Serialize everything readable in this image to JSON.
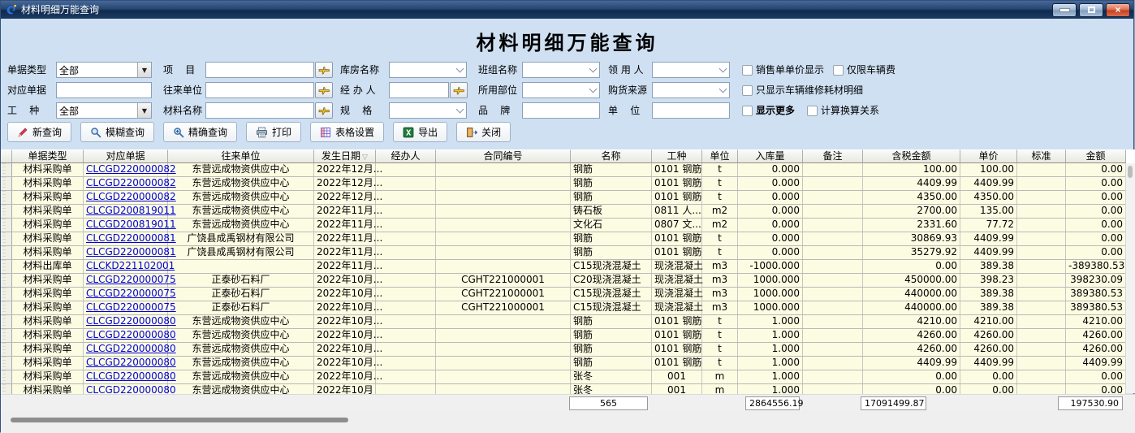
{
  "window": {
    "title": "材料明细万能查询"
  },
  "page_title": "材料明细万能查询",
  "icons": {
    "combo_arrow": "▼",
    "sort_indicator": "▽",
    "close_glyph": "×"
  },
  "filters": {
    "row1": {
      "doc_type": {
        "label": "单据类型",
        "value": "全部"
      },
      "project": {
        "label": "项    目",
        "value": ""
      },
      "warehouse": {
        "label": "库房名称",
        "value": ""
      },
      "team": {
        "label": "班组名称",
        "value": ""
      },
      "recipient": {
        "label": "领 用 人",
        "value": ""
      },
      "cb_sale_price": "销售单单价显示",
      "cb_vehicle_only": "仅限车辆费"
    },
    "row2": {
      "ref_doc": {
        "label": "对应单据",
        "value": ""
      },
      "counterparty": {
        "label": "往来单位",
        "value": ""
      },
      "handler": {
        "label": "经 办 人",
        "value": ""
      },
      "used_part": {
        "label": "所用部位",
        "value": ""
      },
      "purchase_source": {
        "label": "购货来源",
        "value": ""
      },
      "cb_vehicle_maintenance": "只显示车辆维修耗材明细"
    },
    "row3": {
      "work_type": {
        "label": "工    种",
        "value": "全部"
      },
      "material_name": {
        "label": "材料名称",
        "value": ""
      },
      "spec": {
        "label": "规    格",
        "value": ""
      },
      "brand": {
        "label": "品    牌",
        "value": ""
      },
      "unit": {
        "label": "单    位",
        "value": ""
      },
      "cb_show_more": "显示更多",
      "cb_conversion": "计算换算关系"
    }
  },
  "toolbar": {
    "new_query": "新查询",
    "fuzzy_query": "模糊查询",
    "precise_query": "精确查询",
    "print": "打印",
    "table_settings": "表格设置",
    "export": "导出",
    "close": "关闭"
  },
  "table": {
    "columns": [
      {
        "label": "",
        "width": 14,
        "align": "center",
        "stub": true
      },
      {
        "label": "单据类型",
        "width": 88,
        "align": "center"
      },
      {
        "label": "对应单据",
        "width": 104,
        "align": "center",
        "link": true
      },
      {
        "label": "往来单位",
        "width": 180,
        "align": "center"
      },
      {
        "label": "发生日期",
        "width": 76,
        "align": "left",
        "sorted": true
      },
      {
        "label": "经办人",
        "width": 74,
        "align": "left"
      },
      {
        "label": "合同编号",
        "width": 166,
        "align": "center"
      },
      {
        "label": "名称",
        "width": 100,
        "align": "left"
      },
      {
        "label": "工种",
        "width": 62,
        "align": "center"
      },
      {
        "label": "单位",
        "width": 44,
        "align": "center"
      },
      {
        "label": "入库量",
        "width": 80,
        "align": "right"
      },
      {
        "label": "备注",
        "width": 74,
        "align": "left"
      },
      {
        "label": "含税金额",
        "width": 120,
        "align": "right"
      },
      {
        "label": "单价",
        "width": 70,
        "align": "right"
      },
      {
        "label": "标准",
        "width": 60,
        "align": "left"
      },
      {
        "label": "金额",
        "width": 74,
        "align": "right"
      }
    ],
    "rows": [
      [
        "材料采购单",
        "CLCGD220000082",
        "东营远成物资供应中心",
        "2022年12月...",
        "",
        "",
        "钢筋",
        "0101 钢筋",
        "t",
        "0.000",
        "",
        "100.00",
        "100.00",
        "",
        "0.00"
      ],
      [
        "材料采购单",
        "CLCGD220000082",
        "东营远成物资供应中心",
        "2022年12月...",
        "",
        "",
        "钢筋",
        "0101 钢筋",
        "t",
        "0.000",
        "",
        "4409.99",
        "4409.99",
        "",
        "0.00"
      ],
      [
        "材料采购单",
        "CLCGD220000082",
        "东营远成物资供应中心",
        "2022年12月...",
        "",
        "",
        "钢筋",
        "0101 钢筋",
        "t",
        "0.000",
        "",
        "4350.00",
        "4350.00",
        "",
        "0.00"
      ],
      [
        "材料采购单",
        "CLCGD200819011",
        "东营远成物资供应中心",
        "2022年11月...",
        "",
        "",
        "铸石板",
        "0811 人...",
        "m2",
        "0.000",
        "",
        "2700.00",
        "135.00",
        "",
        "0.00"
      ],
      [
        "材料采购单",
        "CLCGD200819011",
        "东营远成物资供应中心",
        "2022年11月...",
        "",
        "",
        "文化石",
        "0807 文...",
        "m2",
        "0.000",
        "",
        "2331.60",
        "77.72",
        "",
        "0.00"
      ],
      [
        "材料采购单",
        "CLCGD220000081",
        "广饶县成禹钢材有限公司",
        "2022年11月...",
        "",
        "",
        "钢筋",
        "0101 钢筋",
        "t",
        "0.000",
        "",
        "30869.93",
        "4409.99",
        "",
        "0.00"
      ],
      [
        "材料采购单",
        "CLCGD220000081",
        "广饶县成禹钢材有限公司",
        "2022年11月...",
        "",
        "",
        "钢筋",
        "0101 钢筋",
        "t",
        "0.000",
        "",
        "35279.92",
        "4409.99",
        "",
        "0.00"
      ],
      [
        "材料出库单",
        "CLCKD221102001",
        "",
        "2022年11月...",
        "",
        "",
        "C15现浇混凝土",
        "现浇混凝土",
        "m3",
        "-1000.000",
        "",
        "0.00",
        "389.38",
        "",
        "-389380.53"
      ],
      [
        "材料采购单",
        "CLCGD220000075",
        "正泰砂石料厂",
        "2022年10月...",
        "",
        "CGHT221000001",
        "C20现浇混凝土",
        "现浇混凝土",
        "m3",
        "1000.000",
        "",
        "450000.00",
        "398.23",
        "",
        "398230.09"
      ],
      [
        "材料采购单",
        "CLCGD220000075",
        "正泰砂石料厂",
        "2022年10月...",
        "",
        "CGHT221000001",
        "C15现浇混凝土",
        "现浇混凝土",
        "m3",
        "1000.000",
        "",
        "440000.00",
        "389.38",
        "",
        "389380.53"
      ],
      [
        "材料采购单",
        "CLCGD220000075",
        "正泰砂石料厂",
        "2022年10月...",
        "",
        "CGHT221000001",
        "C15现浇混凝土",
        "现浇混凝土",
        "m3",
        "1000.000",
        "",
        "440000.00",
        "389.38",
        "",
        "389380.53"
      ],
      [
        "材料采购单",
        "CLCGD220000080",
        "东营远成物资供应中心",
        "2022年10月...",
        "",
        "",
        "钢筋",
        "0101 钢筋",
        "t",
        "1.000",
        "",
        "4210.00",
        "4210.00",
        "",
        "4210.00"
      ],
      [
        "材料采购单",
        "CLCGD220000080",
        "东营远成物资供应中心",
        "2022年10月...",
        "",
        "",
        "钢筋",
        "0101 钢筋",
        "t",
        "1.000",
        "",
        "4260.00",
        "4260.00",
        "",
        "4260.00"
      ],
      [
        "材料采购单",
        "CLCGD220000080",
        "东营远成物资供应中心",
        "2022年10月...",
        "",
        "",
        "钢筋",
        "0101 钢筋",
        "t",
        "1.000",
        "",
        "4260.00",
        "4260.00",
        "",
        "4260.00"
      ],
      [
        "材料采购单",
        "CLCGD220000080",
        "东营远成物资供应中心",
        "2022年10月...",
        "",
        "",
        "钢筋",
        "0101 钢筋",
        "t",
        "1.000",
        "",
        "4409.99",
        "4409.99",
        "",
        "4409.99"
      ],
      [
        "材料采购单",
        "CLCGD220000080",
        "东营远成物资供应中心",
        "2022年10月...",
        "",
        "",
        "张冬",
        "001",
        "m",
        "1.000",
        "",
        "0.00",
        "0.00",
        "",
        "0.00"
      ],
      [
        "材料采购单",
        "CLCGD220000080",
        "东营远成物资供应中心",
        "2022年10月",
        "",
        "",
        "张冬",
        "001",
        "m",
        "1.000",
        "",
        "0.00",
        "0.00",
        "",
        "0.00"
      ]
    ]
  },
  "statusbar": {
    "record_count": "565",
    "qty_total": "2864556.19",
    "tax_total": "17091499.87",
    "amount_total": "197530.90"
  }
}
